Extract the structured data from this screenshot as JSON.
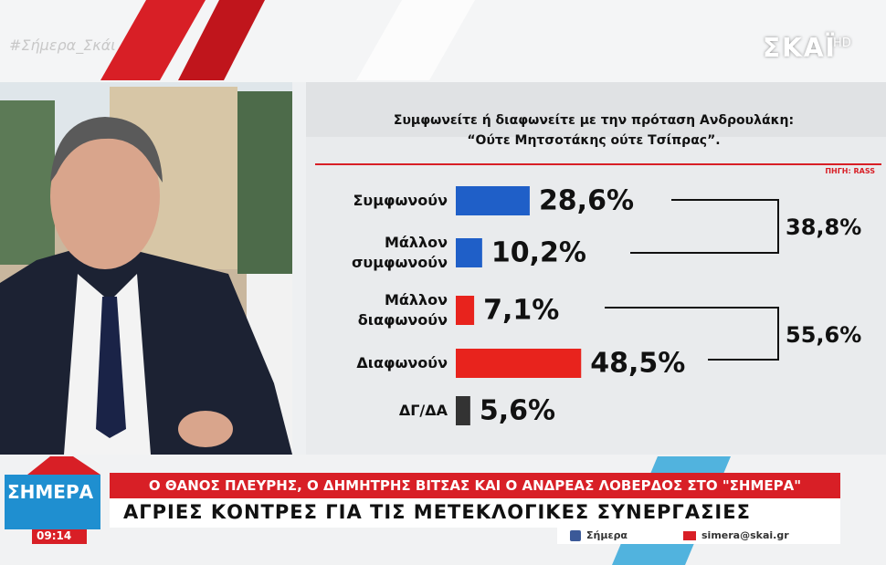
{
  "screen": {
    "hashtag": "#Σήμερα_Σκάι",
    "channel_logo": "ΣΚΑΪ",
    "channel_badge": "HD"
  },
  "chart_data": {
    "type": "bar",
    "orientation": "horizontal",
    "title": "Συμφωνείτε ή διαφωνείτε με την πρόταση Ανδρουλάκη:",
    "subtitle": "“Ούτε Μητσοτάκης ούτε Τσίπρας”.",
    "source": "ΠΗΓΗ: RASS",
    "categories": [
      "Συμφωνούν",
      "Μάλλον συμφωνούν",
      "Μάλλον διαφωνούν",
      "Διαφωνούν",
      "ΔΓ/ΔΑ"
    ],
    "values": [
      28.6,
      10.2,
      7.1,
      48.5,
      5.6
    ],
    "value_labels": [
      "28,6%",
      "10,2%",
      "7,1%",
      "48,5%",
      "5,6%"
    ],
    "colors": [
      "#1f5fc8",
      "#1f5fc8",
      "#e8231d",
      "#e8231d",
      "#333333"
    ],
    "annotations": [
      "38,8%",
      "55,6%"
    ]
  },
  "ticker": {
    "show_logo": "ΣΗΜΕΡΑ",
    "time": "09:14",
    "headline": "Ο ΘΑΝΟΣ ΠΛΕΥΡΗΣ, Ο ΔΗΜΗΤΡΗΣ ΒΙΤΣΑΣ ΚΑΙ Ο ΑΝΔΡΕΑΣ ΛΟΒΕΡΔΟΣ ΣΤΟ \"ΣΗΜΕΡΑ\"",
    "subheadline": "ΑΓΡΙΕΣ ΚΟΝΤΡΕΣ ΓΙΑ ΤΙΣ ΜΕΤΕΚΛΟΓΙΚΕΣ ΣΥΝΕΡΓΑΣΙΕΣ",
    "facebook": "Σήμερα",
    "email": "simera@skai.gr"
  }
}
